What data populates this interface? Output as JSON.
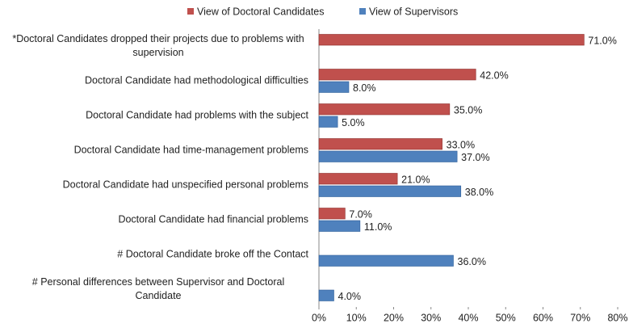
{
  "chart_data": {
    "type": "hbar",
    "categories": [
      "*Doctoral Candidates dropped their projects due to problems with supervision",
      "Doctoral Candidate had methodological difficulties",
      "Doctoral Candidate had problems with the subject",
      "Doctoral Candidate had time-management problems",
      "Doctoral Candidate had unspecified personal problems",
      "Doctoral Candidate had financial problems",
      "# Doctoral Candidate broke off the Contact",
      "# Personal differences between Supervisor and Doctoral Candidate"
    ],
    "series": [
      {
        "name": "View of Doctoral Candidates",
        "color": "#c0504d",
        "values": [
          71,
          42,
          35,
          33,
          21,
          7,
          null,
          null
        ],
        "value_labels": [
          "71.0%",
          "42.0%",
          "35.0%",
          "33.0%",
          "21.0%",
          "7.0%",
          null,
          null
        ]
      },
      {
        "name": "View of Supervisors",
        "color": "#4f81bd",
        "values": [
          null,
          8,
          5,
          37,
          38,
          11,
          36,
          4
        ],
        "value_labels": [
          null,
          "8.0%",
          "5.0%",
          "37.0%",
          "38.0%",
          "11.0%",
          "36.0%",
          "4.0%"
        ]
      }
    ],
    "xlim": [
      0,
      80
    ],
    "xticks": [
      {
        "value": 0,
        "label": "0%"
      },
      {
        "value": 10,
        "label": "10%"
      },
      {
        "value": 20,
        "label": "20%"
      },
      {
        "value": 30,
        "label": "30%"
      },
      {
        "value": 40,
        "label": "40%"
      },
      {
        "value": 50,
        "label": "50%"
      },
      {
        "value": 60,
        "label": "60%"
      },
      {
        "value": 70,
        "label": "70%"
      },
      {
        "value": 80,
        "label": "80%"
      }
    ],
    "legend": "top",
    "grid": false
  }
}
